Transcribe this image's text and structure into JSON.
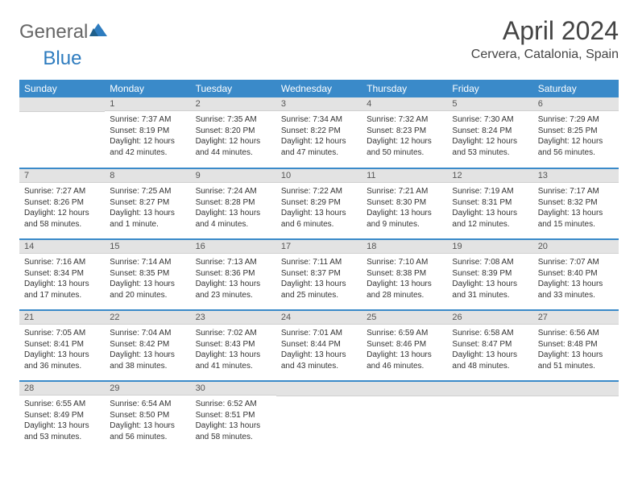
{
  "logo": {
    "part1": "General",
    "part2": "Blue"
  },
  "title": "April 2024",
  "location": "Cervera, Catalonia, Spain",
  "colors": {
    "header_bg": "#3a8ac9",
    "header_text": "#ffffff",
    "daynum_bg": "#e3e3e3",
    "border": "#3a8ac9",
    "text": "#333333",
    "logo_blue": "#2e7cbf"
  },
  "weekdays": [
    "Sunday",
    "Monday",
    "Tuesday",
    "Wednesday",
    "Thursday",
    "Friday",
    "Saturday"
  ],
  "font": {
    "family": "Arial",
    "title_size": 32,
    "location_size": 16,
    "th_size": 12,
    "cell_size": 10
  },
  "weeks": [
    [
      {
        "num": "",
        "sunrise": "",
        "sunset": "",
        "daylight": ""
      },
      {
        "num": "1",
        "sunrise": "Sunrise: 7:37 AM",
        "sunset": "Sunset: 8:19 PM",
        "daylight": "Daylight: 12 hours and 42 minutes."
      },
      {
        "num": "2",
        "sunrise": "Sunrise: 7:35 AM",
        "sunset": "Sunset: 8:20 PM",
        "daylight": "Daylight: 12 hours and 44 minutes."
      },
      {
        "num": "3",
        "sunrise": "Sunrise: 7:34 AM",
        "sunset": "Sunset: 8:22 PM",
        "daylight": "Daylight: 12 hours and 47 minutes."
      },
      {
        "num": "4",
        "sunrise": "Sunrise: 7:32 AM",
        "sunset": "Sunset: 8:23 PM",
        "daylight": "Daylight: 12 hours and 50 minutes."
      },
      {
        "num": "5",
        "sunrise": "Sunrise: 7:30 AM",
        "sunset": "Sunset: 8:24 PM",
        "daylight": "Daylight: 12 hours and 53 minutes."
      },
      {
        "num": "6",
        "sunrise": "Sunrise: 7:29 AM",
        "sunset": "Sunset: 8:25 PM",
        "daylight": "Daylight: 12 hours and 56 minutes."
      }
    ],
    [
      {
        "num": "7",
        "sunrise": "Sunrise: 7:27 AM",
        "sunset": "Sunset: 8:26 PM",
        "daylight": "Daylight: 12 hours and 58 minutes."
      },
      {
        "num": "8",
        "sunrise": "Sunrise: 7:25 AM",
        "sunset": "Sunset: 8:27 PM",
        "daylight": "Daylight: 13 hours and 1 minute."
      },
      {
        "num": "9",
        "sunrise": "Sunrise: 7:24 AM",
        "sunset": "Sunset: 8:28 PM",
        "daylight": "Daylight: 13 hours and 4 minutes."
      },
      {
        "num": "10",
        "sunrise": "Sunrise: 7:22 AM",
        "sunset": "Sunset: 8:29 PM",
        "daylight": "Daylight: 13 hours and 6 minutes."
      },
      {
        "num": "11",
        "sunrise": "Sunrise: 7:21 AM",
        "sunset": "Sunset: 8:30 PM",
        "daylight": "Daylight: 13 hours and 9 minutes."
      },
      {
        "num": "12",
        "sunrise": "Sunrise: 7:19 AM",
        "sunset": "Sunset: 8:31 PM",
        "daylight": "Daylight: 13 hours and 12 minutes."
      },
      {
        "num": "13",
        "sunrise": "Sunrise: 7:17 AM",
        "sunset": "Sunset: 8:32 PM",
        "daylight": "Daylight: 13 hours and 15 minutes."
      }
    ],
    [
      {
        "num": "14",
        "sunrise": "Sunrise: 7:16 AM",
        "sunset": "Sunset: 8:34 PM",
        "daylight": "Daylight: 13 hours and 17 minutes."
      },
      {
        "num": "15",
        "sunrise": "Sunrise: 7:14 AM",
        "sunset": "Sunset: 8:35 PM",
        "daylight": "Daylight: 13 hours and 20 minutes."
      },
      {
        "num": "16",
        "sunrise": "Sunrise: 7:13 AM",
        "sunset": "Sunset: 8:36 PM",
        "daylight": "Daylight: 13 hours and 23 minutes."
      },
      {
        "num": "17",
        "sunrise": "Sunrise: 7:11 AM",
        "sunset": "Sunset: 8:37 PM",
        "daylight": "Daylight: 13 hours and 25 minutes."
      },
      {
        "num": "18",
        "sunrise": "Sunrise: 7:10 AM",
        "sunset": "Sunset: 8:38 PM",
        "daylight": "Daylight: 13 hours and 28 minutes."
      },
      {
        "num": "19",
        "sunrise": "Sunrise: 7:08 AM",
        "sunset": "Sunset: 8:39 PM",
        "daylight": "Daylight: 13 hours and 31 minutes."
      },
      {
        "num": "20",
        "sunrise": "Sunrise: 7:07 AM",
        "sunset": "Sunset: 8:40 PM",
        "daylight": "Daylight: 13 hours and 33 minutes."
      }
    ],
    [
      {
        "num": "21",
        "sunrise": "Sunrise: 7:05 AM",
        "sunset": "Sunset: 8:41 PM",
        "daylight": "Daylight: 13 hours and 36 minutes."
      },
      {
        "num": "22",
        "sunrise": "Sunrise: 7:04 AM",
        "sunset": "Sunset: 8:42 PM",
        "daylight": "Daylight: 13 hours and 38 minutes."
      },
      {
        "num": "23",
        "sunrise": "Sunrise: 7:02 AM",
        "sunset": "Sunset: 8:43 PM",
        "daylight": "Daylight: 13 hours and 41 minutes."
      },
      {
        "num": "24",
        "sunrise": "Sunrise: 7:01 AM",
        "sunset": "Sunset: 8:44 PM",
        "daylight": "Daylight: 13 hours and 43 minutes."
      },
      {
        "num": "25",
        "sunrise": "Sunrise: 6:59 AM",
        "sunset": "Sunset: 8:46 PM",
        "daylight": "Daylight: 13 hours and 46 minutes."
      },
      {
        "num": "26",
        "sunrise": "Sunrise: 6:58 AM",
        "sunset": "Sunset: 8:47 PM",
        "daylight": "Daylight: 13 hours and 48 minutes."
      },
      {
        "num": "27",
        "sunrise": "Sunrise: 6:56 AM",
        "sunset": "Sunset: 8:48 PM",
        "daylight": "Daylight: 13 hours and 51 minutes."
      }
    ],
    [
      {
        "num": "28",
        "sunrise": "Sunrise: 6:55 AM",
        "sunset": "Sunset: 8:49 PM",
        "daylight": "Daylight: 13 hours and 53 minutes."
      },
      {
        "num": "29",
        "sunrise": "Sunrise: 6:54 AM",
        "sunset": "Sunset: 8:50 PM",
        "daylight": "Daylight: 13 hours and 56 minutes."
      },
      {
        "num": "30",
        "sunrise": "Sunrise: 6:52 AM",
        "sunset": "Sunset: 8:51 PM",
        "daylight": "Daylight: 13 hours and 58 minutes."
      },
      {
        "num": "",
        "sunrise": "",
        "sunset": "",
        "daylight": ""
      },
      {
        "num": "",
        "sunrise": "",
        "sunset": "",
        "daylight": ""
      },
      {
        "num": "",
        "sunrise": "",
        "sunset": "",
        "daylight": ""
      },
      {
        "num": "",
        "sunrise": "",
        "sunset": "",
        "daylight": ""
      }
    ]
  ]
}
